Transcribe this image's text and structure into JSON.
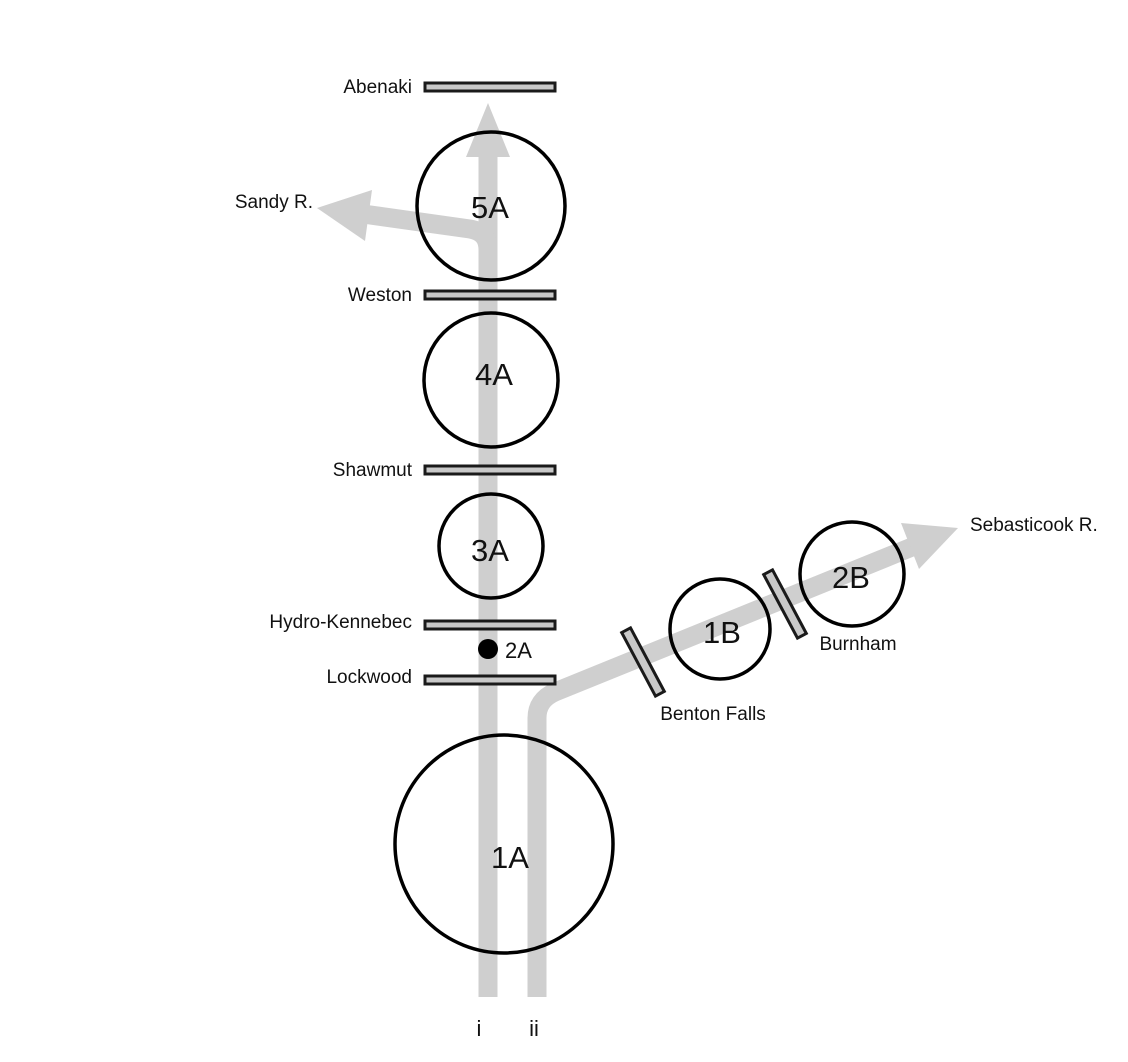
{
  "dams": {
    "abenaki": "Abenaki",
    "weston": "Weston",
    "shawmut": "Shawmut",
    "hydro_kennebec": "Hydro-Kennebec",
    "lockwood": "Lockwood",
    "benton_falls": "Benton Falls",
    "burnham": "Burnham"
  },
  "rivers": {
    "sandy": "Sandy R.",
    "sebasticook": "Sebasticook R."
  },
  "zones": {
    "z5a": "5A",
    "z4a": "4A",
    "z3a": "3A",
    "z2a": "2A",
    "z1a": "1A",
    "z1b": "1B",
    "z2b": "2B"
  },
  "routes": {
    "route_i": "i",
    "route_ii": "ii"
  },
  "colors": {
    "flow": "#cfcfcf",
    "dam_fill": "#c9c9c9",
    "outline": "#000000"
  }
}
